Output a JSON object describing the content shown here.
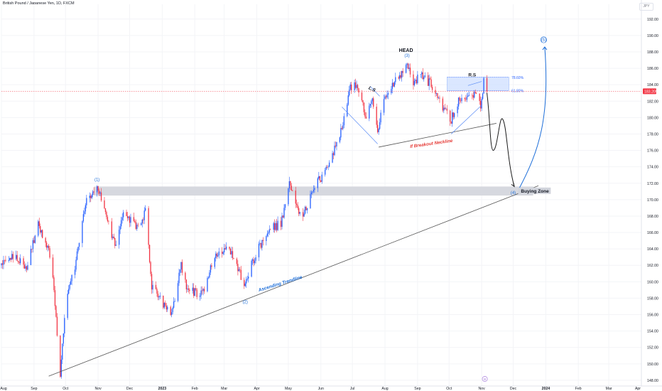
{
  "header": {
    "symbol_line": "British Pound / Japanese Yen, 1D, FXCM",
    "currency_button": "JPY"
  },
  "chart_data": {
    "type": "candlestick",
    "title": "British Pound / Japanese Yen, 1D, FXCM",
    "colors": {
      "up": "#2962ff",
      "down": "#f23645",
      "trendline": "#555555",
      "projection": "#1e6fd9",
      "neckline_label": "#e53935",
      "zone_fill": "#d1d4dc",
      "fib_fill": "#cfe0ff"
    },
    "x_tick_labels": [
      "Aug",
      "Sep",
      "Oct",
      "Nov",
      "Dec",
      "2023",
      "Feb",
      "Mar",
      "Apr",
      "May",
      "Jun",
      "Jul",
      "Aug",
      "Sep",
      "Oct",
      "Nov",
      "Dec",
      "2024",
      "Feb",
      "Mar",
      "Apr"
    ],
    "x_range": [
      "2022-08-01",
      "2024-04-01"
    ],
    "y_ticks": [
      148,
      150,
      152,
      154,
      156,
      158,
      160,
      162,
      164,
      166,
      168,
      170,
      172,
      174,
      176,
      178,
      180,
      182,
      184,
      186,
      188,
      190,
      192
    ],
    "y_tick_labels": [
      "148.00",
      "150.00",
      "152.00",
      "154.00",
      "156.00",
      "158.00",
      "160.00",
      "162.00",
      "164.00",
      "166.00",
      "168.00",
      "170.00",
      "172.00",
      "174.00",
      "176.00",
      "178.00",
      "180.00",
      "182.00",
      "184.00",
      "186.00",
      "188.00",
      "190.00",
      "192.00"
    ],
    "ylim": [
      147.3,
      193.8
    ],
    "current_price": 183.2,
    "current_price_label": "183.205",
    "price_waypoints": [
      [
        "2022-08-01",
        162.0
      ],
      [
        "2022-08-15",
        163.2
      ],
      [
        "2022-08-25",
        161.8
      ],
      [
        "2022-09-05",
        167.0
      ],
      [
        "2022-09-18",
        162.5
      ],
      [
        "2022-09-26",
        148.8
      ],
      [
        "2022-10-01",
        157.0
      ],
      [
        "2022-10-10",
        162.0
      ],
      [
        "2022-10-21",
        170.0
      ],
      [
        "2022-10-31",
        171.8
      ],
      [
        "2022-11-08",
        168.0
      ],
      [
        "2022-11-17",
        164.5
      ],
      [
        "2022-11-25",
        168.5
      ],
      [
        "2022-12-09",
        166.5
      ],
      [
        "2022-12-16",
        168.5
      ],
      [
        "2022-12-22",
        159.5
      ],
      [
        "2023-01-03",
        157.0
      ],
      [
        "2023-01-10",
        155.8
      ],
      [
        "2023-01-19",
        162.0
      ],
      [
        "2023-01-25",
        159.0
      ],
      [
        "2023-02-08",
        158.5
      ],
      [
        "2023-02-21",
        163.5
      ],
      [
        "2023-03-02",
        164.0
      ],
      [
        "2023-03-10",
        163.0
      ],
      [
        "2023-03-20",
        159.5
      ],
      [
        "2023-03-28",
        162.5
      ],
      [
        "2023-04-12",
        166.5
      ],
      [
        "2023-04-24",
        167.0
      ],
      [
        "2023-05-02",
        171.8
      ],
      [
        "2023-05-10",
        169.0
      ],
      [
        "2023-05-15",
        168.0
      ],
      [
        "2023-05-25",
        171.5
      ],
      [
        "2023-06-08",
        173.8
      ],
      [
        "2023-06-20",
        178.5
      ],
      [
        "2023-06-29",
        183.5
      ],
      [
        "2023-07-04",
        183.8
      ],
      [
        "2023-07-10",
        182.0
      ],
      [
        "2023-07-14",
        180.0
      ],
      [
        "2023-07-20",
        182.0
      ],
      [
        "2023-07-25",
        178.5
      ],
      [
        "2023-08-01",
        182.5
      ],
      [
        "2023-08-14",
        185.0
      ],
      [
        "2023-08-22",
        186.3
      ],
      [
        "2023-08-28",
        184.2
      ],
      [
        "2023-09-05",
        185.2
      ],
      [
        "2023-09-14",
        184.0
      ],
      [
        "2023-09-22",
        182.0
      ],
      [
        "2023-10-03",
        179.8
      ],
      [
        "2023-10-12",
        182.5
      ],
      [
        "2023-10-20",
        182.5
      ],
      [
        "2023-10-26",
        183.0
      ],
      [
        "2023-10-31",
        181.2
      ],
      [
        "2023-11-03",
        184.3
      ],
      [
        "2023-11-06",
        183.2
      ]
    ],
    "annotations": {
      "wave_labels": [
        {
          "text": "(1)",
          "date": "2022-10-31",
          "price": 172.3
        },
        {
          "text": "(2)",
          "date": "2023-03-21",
          "price": 157.4
        },
        {
          "text": "(3)",
          "date": "2023-08-22",
          "price": 187.4
        },
        {
          "text": "(4)",
          "date": "2023-12-01",
          "price": 170.7
        },
        {
          "text": "(5)",
          "date": "2023-12-30",
          "price": 189.3
        }
      ],
      "pattern_labels": {
        "head": "HEAD",
        "left_shoulder": "L.S",
        "right_shoulder": "R.S"
      },
      "neckline_label": "If Breakout Neckline",
      "trendline_label": "Ascending Trendline",
      "buying_zone_label": "Buying Zone",
      "buying_zone_range": [
        170.5,
        171.6
      ],
      "fib_levels": [
        {
          "label": "61.80%",
          "price": 183.3
        },
        {
          "label": "78.60%",
          "price": 184.9
        }
      ],
      "bottom_marker": "8"
    }
  }
}
